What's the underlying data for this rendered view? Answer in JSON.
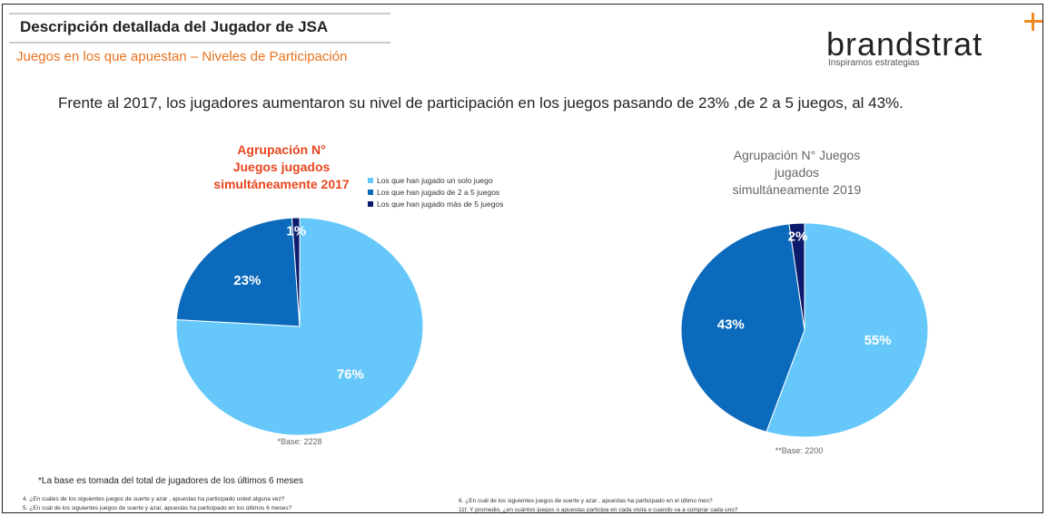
{
  "header": {
    "title": "Descripción detallada del Jugador de JSA",
    "subtitle": "Juegos en los que apuestan – Niveles de Participación"
  },
  "logo": {
    "name": "brandstrat",
    "tagline": "Inspiramos estrategias"
  },
  "headline": "Frente al  2017, los jugadores aumentaron su nivel de participación en los juegos pasando de 23% ,de 2 a 5 juegos, al 43%.",
  "chart_data": [
    {
      "type": "pie",
      "title": "Agrupación N° Juegos jugados simultáneamente 2017",
      "categories": [
        "Los que han jugado un solo juego",
        "Los que han jugado de 2 a 5 juegos",
        "Los que han jugado más de 5 juegos"
      ],
      "values": [
        76,
        23,
        1
      ],
      "value_labels": [
        "76%",
        "23%",
        "1%"
      ],
      "colors": [
        "#66c8fa",
        "#0b6abb",
        "#0b1a6a"
      ],
      "title_color": "#e8461e",
      "note": "*Base: 2228"
    },
    {
      "type": "pie",
      "title": "Agrupación N° Juegos jugados simultáneamente 2019",
      "values": [
        55,
        43,
        2
      ],
      "value_labels": [
        "55%",
        "43%",
        "2%"
      ],
      "colors": [
        "#66c8fa",
        "#0b6abb",
        "#0b1a6a"
      ],
      "title_color": "#666666",
      "note": "**Base: 2200"
    }
  ],
  "footnote": "*La base es tomada del total de jugadores de los últimos 6 meses",
  "questions": [
    "4. ¿En cuáles de los siguientes juegos de suerte y azar , apuestas ha participado usted alguna vez?",
    "5. ¿En cuál de los siguientes juegos de suerte y azar, apuestas ha participado en los últimos 6 meses?",
    "6. ¿En cuál de los siguientes juegos de suerte y azar , apuestas ha participado en el último mes?",
    "11f. Y promedio, ¿en cuántos juegos o apuestas participa en cada visita o cuando va a comprar cada uno?"
  ]
}
